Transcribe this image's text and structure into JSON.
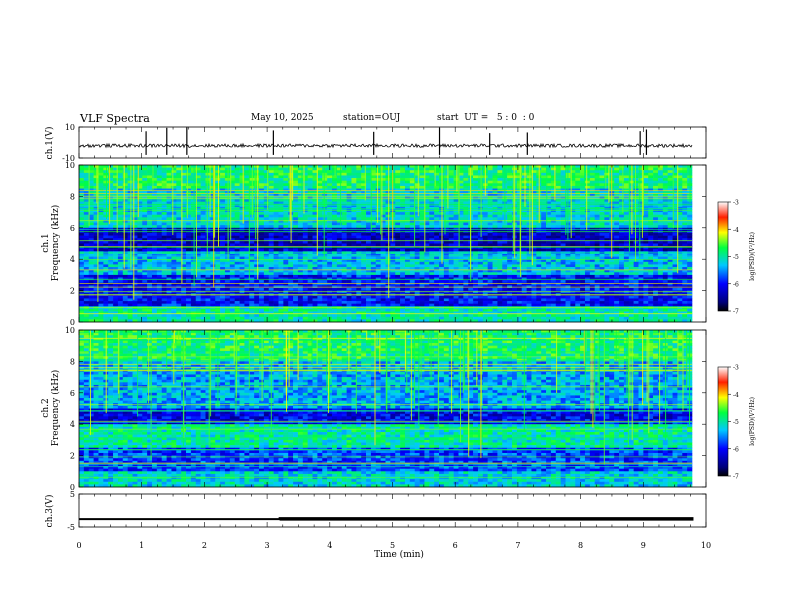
{
  "header": {
    "title": "VLF Spectra",
    "date": "May 10, 2025",
    "station": "station=OUJ",
    "start_ut": "start  UT =   5 : 0  : 0"
  },
  "chart_data": [
    {
      "type": "line",
      "ylabel": "ch.1(V)",
      "ylim": [
        -10,
        10
      ],
      "yticks": [
        "10",
        "-10"
      ],
      "xlim": [
        0,
        10
      ],
      "description_of_values": "noisy signal around -2 V with sparse spikes",
      "baseline": -2,
      "spike_times": [
        1.07,
        1.4,
        1.72,
        3.1,
        4.7,
        5.75,
        6.55,
        7.15,
        8.95,
        9.05
      ]
    },
    {
      "type": "heatmap",
      "ylabel": "ch.1\nFrequency (kHz)",
      "ylim": [
        0,
        10
      ],
      "yticks": [
        "0",
        "2",
        "4",
        "6",
        "8",
        "10"
      ],
      "xlim": [
        0,
        10
      ],
      "colorbar": {
        "label": "log(PSD)(V²/Hz)",
        "ticks": [
          "-3",
          "-4",
          "-5",
          "-6",
          "-7"
        ],
        "range": [
          -7,
          -3
        ]
      }
    },
    {
      "type": "heatmap",
      "ylabel": "ch.2\nFrequency (kHz)",
      "ylim": [
        0,
        10
      ],
      "yticks": [
        "0",
        "2",
        "4",
        "6",
        "8",
        "10"
      ],
      "xlim": [
        0,
        10
      ],
      "colorbar": {
        "label": "log(PSD)(V²/Hz)",
        "ticks": [
          "-3",
          "-4",
          "-5",
          "-6",
          "-7"
        ],
        "range": [
          -7,
          -3
        ]
      }
    },
    {
      "type": "line",
      "ylabel": "ch.3(V)",
      "ylim": [
        -5,
        5
      ],
      "yticks": [
        "5",
        "-5"
      ],
      "xlim": [
        0,
        10
      ],
      "xlabel": "Time (min)",
      "xticks": [
        "0",
        "1",
        "2",
        "3",
        "4",
        "5",
        "6",
        "7",
        "8",
        "9",
        "10"
      ],
      "points": [
        [
          0,
          -2.6
        ],
        [
          3.2,
          -2.6
        ],
        [
          3.2,
          -2.3
        ],
        [
          9.8,
          -2.3
        ]
      ]
    }
  ]
}
